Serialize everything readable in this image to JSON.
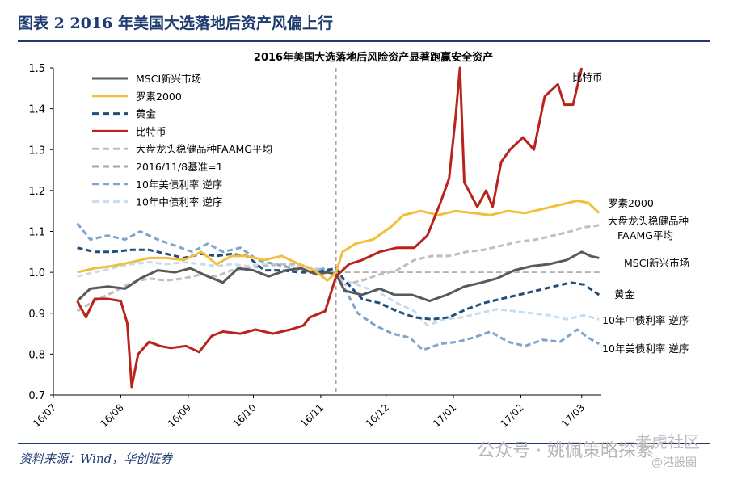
{
  "figure": {
    "title": "图表 2   2016 年美国大选落地后资产风偏上行",
    "source": "资料来源：Wind，华创证券",
    "watermark_primary": "公众号 · 姚佩策略探索",
    "watermark_secondary": "老虎社区",
    "watermark_tertiary": "@港股圈"
  },
  "chart_data": {
    "type": "line",
    "title": "2016年美国大选落地后风险资产显著跑赢安全资产",
    "xlabel": "",
    "ylabel": "",
    "x_ticks": [
      "16/07",
      "16/08",
      "16/09",
      "16/10",
      "16/11",
      "16/12",
      "17/01",
      "17/02",
      "17/03"
    ],
    "y_ticks": [
      "0.7",
      "0.8",
      "0.9",
      "1.0",
      "1.1",
      "1.2",
      "1.3",
      "1.4",
      "1.5"
    ],
    "ylim": [
      0.7,
      1.5
    ],
    "xlim": [
      "2016-07-01",
      "2017-03-10"
    ],
    "grid": false,
    "legend_position": "top-left",
    "vertical_marker": {
      "date": "2016-11-08",
      "color": "#a6a6a6",
      "style": "dashed"
    },
    "series": [
      {
        "name": "MSCI新兴市场",
        "end_label": "MSCI新兴市场",
        "color": "#595959",
        "style": "solid",
        "points": [
          [
            "2016-07-12",
            0.93
          ],
          [
            "2016-07-18",
            0.96
          ],
          [
            "2016-07-26",
            0.965
          ],
          [
            "2016-08-03",
            0.96
          ],
          [
            "2016-08-10",
            0.985
          ],
          [
            "2016-08-18",
            1.005
          ],
          [
            "2016-08-26",
            1.0
          ],
          [
            "2016-09-02",
            1.01
          ],
          [
            "2016-09-10",
            0.99
          ],
          [
            "2016-09-17",
            0.975
          ],
          [
            "2016-09-24",
            1.01
          ],
          [
            "2016-10-01",
            1.005
          ],
          [
            "2016-10-08",
            0.99
          ],
          [
            "2016-10-16",
            1.005
          ],
          [
            "2016-10-23",
            1.01
          ],
          [
            "2016-10-30",
            0.995
          ],
          [
            "2016-11-04",
            1.0
          ],
          [
            "2016-11-08",
            0.995
          ],
          [
            "2016-11-12",
            0.955
          ],
          [
            "2016-11-20",
            0.945
          ],
          [
            "2016-11-28",
            0.96
          ],
          [
            "2016-12-05",
            0.945
          ],
          [
            "2016-12-13",
            0.945
          ],
          [
            "2016-12-21",
            0.93
          ],
          [
            "2016-12-29",
            0.945
          ],
          [
            "2017-01-06",
            0.965
          ],
          [
            "2017-01-14",
            0.975
          ],
          [
            "2017-01-21",
            0.985
          ],
          [
            "2017-01-29",
            1.005
          ],
          [
            "2017-02-06",
            1.015
          ],
          [
            "2017-02-14",
            1.02
          ],
          [
            "2017-02-22",
            1.03
          ],
          [
            "2017-03-01",
            1.05
          ],
          [
            "2017-03-05",
            1.04
          ],
          [
            "2017-03-09",
            1.035
          ]
        ]
      },
      {
        "name": "罗素2000",
        "end_label": "罗素2000",
        "color": "#f2be3c",
        "style": "solid",
        "points": [
          [
            "2016-07-12",
            1.0
          ],
          [
            "2016-07-20",
            1.01
          ],
          [
            "2016-07-28",
            1.015
          ],
          [
            "2016-08-06",
            1.025
          ],
          [
            "2016-08-14",
            1.035
          ],
          [
            "2016-08-22",
            1.035
          ],
          [
            "2016-08-30",
            1.03
          ],
          [
            "2016-09-07",
            1.05
          ],
          [
            "2016-09-14",
            1.02
          ],
          [
            "2016-09-21",
            1.04
          ],
          [
            "2016-09-28",
            1.04
          ],
          [
            "2016-10-06",
            1.03
          ],
          [
            "2016-10-14",
            1.04
          ],
          [
            "2016-10-22",
            1.02
          ],
          [
            "2016-10-29",
            1.005
          ],
          [
            "2016-11-04",
            0.98
          ],
          [
            "2016-11-08",
            1.0
          ],
          [
            "2016-11-11",
            1.05
          ],
          [
            "2016-11-17",
            1.07
          ],
          [
            "2016-11-25",
            1.08
          ],
          [
            "2016-12-03",
            1.11
          ],
          [
            "2016-12-09",
            1.14
          ],
          [
            "2016-12-17",
            1.15
          ],
          [
            "2016-12-25",
            1.14
          ],
          [
            "2017-01-02",
            1.15
          ],
          [
            "2017-01-10",
            1.145
          ],
          [
            "2017-01-18",
            1.14
          ],
          [
            "2017-01-26",
            1.15
          ],
          [
            "2017-02-03",
            1.145
          ],
          [
            "2017-02-11",
            1.155
          ],
          [
            "2017-02-19",
            1.165
          ],
          [
            "2017-02-27",
            1.175
          ],
          [
            "2017-03-04",
            1.17
          ],
          [
            "2017-03-09",
            1.145
          ]
        ]
      },
      {
        "name": "黄金",
        "end_label": "黄金",
        "color": "#1f4e79",
        "style": "dashed",
        "points": [
          [
            "2016-07-12",
            1.06
          ],
          [
            "2016-07-20",
            1.05
          ],
          [
            "2016-07-28",
            1.05
          ],
          [
            "2016-08-06",
            1.055
          ],
          [
            "2016-08-14",
            1.055
          ],
          [
            "2016-08-22",
            1.045
          ],
          [
            "2016-08-30",
            1.035
          ],
          [
            "2016-09-07",
            1.045
          ],
          [
            "2016-09-14",
            1.04
          ],
          [
            "2016-09-21",
            1.045
          ],
          [
            "2016-09-28",
            1.04
          ],
          [
            "2016-10-06",
            1.005
          ],
          [
            "2016-10-14",
            1.005
          ],
          [
            "2016-10-22",
            1.0
          ],
          [
            "2016-10-30",
            1.0
          ],
          [
            "2016-11-08",
            1.01
          ],
          [
            "2016-11-12",
            0.98
          ],
          [
            "2016-11-20",
            0.935
          ],
          [
            "2016-11-28",
            0.925
          ],
          [
            "2016-12-06",
            0.905
          ],
          [
            "2016-12-14",
            0.89
          ],
          [
            "2016-12-22",
            0.885
          ],
          [
            "2016-12-30",
            0.89
          ],
          [
            "2017-01-07",
            0.91
          ],
          [
            "2017-01-15",
            0.925
          ],
          [
            "2017-01-23",
            0.935
          ],
          [
            "2017-01-31",
            0.945
          ],
          [
            "2017-02-08",
            0.955
          ],
          [
            "2017-02-16",
            0.965
          ],
          [
            "2017-02-24",
            0.975
          ],
          [
            "2017-03-02",
            0.97
          ],
          [
            "2017-03-09",
            0.945
          ]
        ]
      },
      {
        "name": "比特币",
        "end_label": "比特币",
        "color": "#b8241c",
        "style": "solid",
        "points": [
          [
            "2016-07-12",
            0.93
          ],
          [
            "2016-07-16",
            0.89
          ],
          [
            "2016-07-20",
            0.935
          ],
          [
            "2016-07-26",
            0.935
          ],
          [
            "2016-08-01",
            0.93
          ],
          [
            "2016-08-04",
            0.875
          ],
          [
            "2016-08-06",
            0.72
          ],
          [
            "2016-08-09",
            0.8
          ],
          [
            "2016-08-14",
            0.83
          ],
          [
            "2016-08-19",
            0.82
          ],
          [
            "2016-08-24",
            0.815
          ],
          [
            "2016-08-31",
            0.82
          ],
          [
            "2016-09-06",
            0.805
          ],
          [
            "2016-09-12",
            0.845
          ],
          [
            "2016-09-17",
            0.855
          ],
          [
            "2016-09-25",
            0.85
          ],
          [
            "2016-10-02",
            0.86
          ],
          [
            "2016-10-10",
            0.85
          ],
          [
            "2016-10-18",
            0.86
          ],
          [
            "2016-10-24",
            0.87
          ],
          [
            "2016-10-27",
            0.89
          ],
          [
            "2016-11-03",
            0.905
          ],
          [
            "2016-11-08",
            0.99
          ],
          [
            "2016-11-14",
            1.02
          ],
          [
            "2016-11-20",
            1.03
          ],
          [
            "2016-11-28",
            1.05
          ],
          [
            "2016-12-06",
            1.06
          ],
          [
            "2016-12-14",
            1.06
          ],
          [
            "2016-12-20",
            1.09
          ],
          [
            "2016-12-26",
            1.17
          ],
          [
            "2016-12-30",
            1.23
          ],
          [
            "2017-01-02",
            1.38
          ],
          [
            "2017-01-04",
            1.5
          ],
          [
            "2017-01-06",
            1.22
          ],
          [
            "2017-01-09",
            1.19
          ],
          [
            "2017-01-12",
            1.16
          ],
          [
            "2017-01-16",
            1.2
          ],
          [
            "2017-01-19",
            1.16
          ],
          [
            "2017-01-23",
            1.27
          ],
          [
            "2017-01-27",
            1.3
          ],
          [
            "2017-02-02",
            1.33
          ],
          [
            "2017-02-07",
            1.3
          ],
          [
            "2017-02-12",
            1.43
          ],
          [
            "2017-02-18",
            1.46
          ],
          [
            "2017-02-21",
            1.41
          ],
          [
            "2017-02-25",
            1.41
          ],
          [
            "2017-03-01",
            1.5
          ]
        ]
      },
      {
        "name": "大盘龙头稳健品种FAAMG平均",
        "end_label": "大盘龙头稳健品种FAAMG平均",
        "color": "#bfbfbf",
        "style": "dashed",
        "points": [
          [
            "2016-07-12",
            0.905
          ],
          [
            "2016-07-20",
            0.93
          ],
          [
            "2016-07-28",
            0.95
          ],
          [
            "2016-08-06",
            0.975
          ],
          [
            "2016-08-14",
            0.985
          ],
          [
            "2016-08-22",
            0.98
          ],
          [
            "2016-08-30",
            0.985
          ],
          [
            "2016-09-07",
            0.995
          ],
          [
            "2016-09-14",
            0.99
          ],
          [
            "2016-09-21",
            1.005
          ],
          [
            "2016-09-28",
            1.01
          ],
          [
            "2016-10-06",
            1.015
          ],
          [
            "2016-10-14",
            1.02
          ],
          [
            "2016-10-22",
            1.02
          ],
          [
            "2016-10-30",
            1.005
          ],
          [
            "2016-11-08",
            1.0
          ],
          [
            "2016-11-12",
            0.97
          ],
          [
            "2016-11-20",
            0.98
          ],
          [
            "2016-11-28",
            0.995
          ],
          [
            "2016-12-06",
            1.005
          ],
          [
            "2016-12-14",
            1.03
          ],
          [
            "2016-12-22",
            1.04
          ],
          [
            "2016-12-30",
            1.04
          ],
          [
            "2017-01-07",
            1.05
          ],
          [
            "2017-01-15",
            1.055
          ],
          [
            "2017-01-23",
            1.065
          ],
          [
            "2017-01-31",
            1.075
          ],
          [
            "2017-02-08",
            1.08
          ],
          [
            "2017-02-16",
            1.09
          ],
          [
            "2017-02-24",
            1.1
          ],
          [
            "2017-03-02",
            1.11
          ],
          [
            "2017-03-09",
            1.115
          ]
        ]
      },
      {
        "name": "2016/11/8基准=1",
        "color": "#a6a6a6",
        "style": "dashed",
        "points": [
          [
            "2016-11-08",
            1.0
          ],
          [
            "2017-03-10",
            1.0
          ]
        ]
      },
      {
        "name": "10年美债利率 逆序",
        "end_label": "10年美债利率 逆序",
        "color": "#7ea6cc",
        "style": "dashed",
        "points": [
          [
            "2016-07-12",
            1.12
          ],
          [
            "2016-07-18",
            1.08
          ],
          [
            "2016-07-26",
            1.09
          ],
          [
            "2016-08-03",
            1.08
          ],
          [
            "2016-08-10",
            1.1
          ],
          [
            "2016-08-18",
            1.08
          ],
          [
            "2016-08-26",
            1.065
          ],
          [
            "2016-09-03",
            1.05
          ],
          [
            "2016-09-10",
            1.07
          ],
          [
            "2016-09-17",
            1.05
          ],
          [
            "2016-09-25",
            1.06
          ],
          [
            "2016-10-03",
            1.03
          ],
          [
            "2016-10-11",
            1.02
          ],
          [
            "2016-10-19",
            1.01
          ],
          [
            "2016-10-27",
            1.0
          ],
          [
            "2016-11-03",
            1.01
          ],
          [
            "2016-11-08",
            1.0
          ],
          [
            "2016-11-12",
            0.96
          ],
          [
            "2016-11-18",
            0.9
          ],
          [
            "2016-11-26",
            0.87
          ],
          [
            "2016-12-04",
            0.85
          ],
          [
            "2016-12-12",
            0.84
          ],
          [
            "2016-12-18",
            0.81
          ],
          [
            "2016-12-26",
            0.825
          ],
          [
            "2017-01-03",
            0.83
          ],
          [
            "2017-01-10",
            0.84
          ],
          [
            "2017-01-18",
            0.855
          ],
          [
            "2017-01-26",
            0.83
          ],
          [
            "2017-02-03",
            0.82
          ],
          [
            "2017-02-11",
            0.835
          ],
          [
            "2017-02-19",
            0.83
          ],
          [
            "2017-02-27",
            0.86
          ],
          [
            "2017-03-04",
            0.84
          ],
          [
            "2017-03-09",
            0.825
          ]
        ]
      },
      {
        "name": "10年中债利率 逆序",
        "end_label": "10年中债利率 逆序",
        "color": "#c6dcef",
        "style": "dashed",
        "points": [
          [
            "2016-07-12",
            0.99
          ],
          [
            "2016-07-20",
            1.0
          ],
          [
            "2016-07-28",
            1.01
          ],
          [
            "2016-08-06",
            1.02
          ],
          [
            "2016-08-14",
            1.025
          ],
          [
            "2016-08-22",
            1.02
          ],
          [
            "2016-08-30",
            1.025
          ],
          [
            "2016-09-07",
            1.02
          ],
          [
            "2016-09-14",
            1.015
          ],
          [
            "2016-09-21",
            1.02
          ],
          [
            "2016-09-28",
            1.015
          ],
          [
            "2016-10-06",
            1.02
          ],
          [
            "2016-10-14",
            1.02
          ],
          [
            "2016-10-22",
            1.015
          ],
          [
            "2016-10-30",
            1.01
          ],
          [
            "2016-11-08",
            0.995
          ],
          [
            "2016-11-12",
            0.98
          ],
          [
            "2016-11-20",
            0.965
          ],
          [
            "2016-11-28",
            0.95
          ],
          [
            "2016-12-06",
            0.925
          ],
          [
            "2016-12-14",
            0.905
          ],
          [
            "2016-12-20",
            0.87
          ],
          [
            "2016-12-28",
            0.885
          ],
          [
            "2017-01-05",
            0.89
          ],
          [
            "2017-01-13",
            0.9
          ],
          [
            "2017-01-21",
            0.91
          ],
          [
            "2017-01-29",
            0.905
          ],
          [
            "2017-02-06",
            0.9
          ],
          [
            "2017-02-14",
            0.895
          ],
          [
            "2017-02-22",
            0.885
          ],
          [
            "2017-03-02",
            0.895
          ],
          [
            "2017-03-09",
            0.885
          ]
        ]
      }
    ]
  }
}
